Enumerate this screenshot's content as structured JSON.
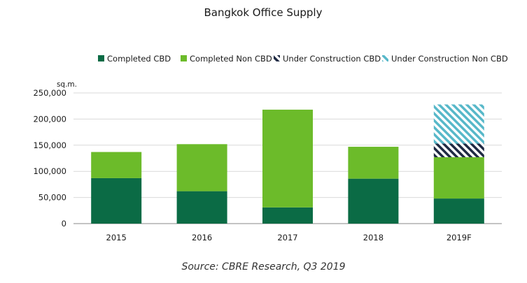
{
  "chart_data": {
    "type": "bar",
    "stacked": true,
    "title": "Bangkok Office Supply",
    "ylabel": "sq.m.",
    "xlabel": "",
    "categories": [
      "2015",
      "2016",
      "2017",
      "2018",
      "2019F"
    ],
    "ylim": [
      0,
      250000
    ],
    "yticks": [
      0,
      50000,
      100000,
      150000,
      200000,
      250000
    ],
    "ytick_labels": [
      "0",
      "50,000",
      "100,000",
      "150,000",
      "200,000",
      "250,000"
    ],
    "grid": true,
    "legend_position": "top",
    "series": [
      {
        "name": "Completed CBD",
        "color": "#0b6b45",
        "pattern": "solid",
        "values": [
          87000,
          62000,
          31000,
          86000,
          48000
        ]
      },
      {
        "name": "Completed Non CBD",
        "color": "#6cbb2a",
        "pattern": "solid",
        "values": [
          50000,
          90000,
          187000,
          61000,
          79000
        ]
      },
      {
        "name": "Under Construction CBD",
        "color": "#1f2a44",
        "pattern": "hatch",
        "values": [
          0,
          0,
          0,
          0,
          26000
        ]
      },
      {
        "name": "Under Construction Non CBD",
        "color": "#57b8c9",
        "pattern": "hatch",
        "values": [
          0,
          0,
          0,
          0,
          75000
        ]
      }
    ]
  },
  "source": "Source: CBRE Research, Q3 2019"
}
